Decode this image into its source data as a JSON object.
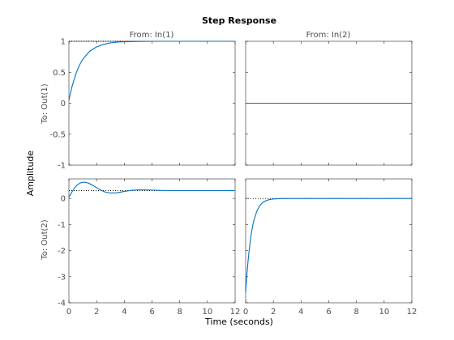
{
  "chart_data": {
    "type": "line",
    "title": "Step Response",
    "xlabel": "Time (seconds)",
    "ylabel": "Amplitude",
    "column_labels": [
      "From: In(1)",
      "From: In(2)"
    ],
    "row_labels": [
      "To: Out(1)",
      "To: Out(2)"
    ],
    "line_color": "#0072bd",
    "steady_state_line_color": "#000000",
    "xlim": [
      0,
      12
    ],
    "xticks": [
      "0",
      "2",
      "4",
      "6",
      "8",
      "10",
      "12"
    ],
    "rows": [
      {
        "ylim": [
          -1,
          1
        ],
        "yticks": [
          "1",
          "0.5",
          "0",
          "-0.5",
          "-1"
        ],
        "panels": [
          {
            "steady_state": 1.0,
            "x": [
              0,
              0.25,
              0.5,
              0.75,
              1,
              1.5,
              2,
              2.5,
              3,
              3.5,
              4,
              5,
              6,
              7,
              8,
              9,
              10,
              11,
              12
            ],
            "y": [
              0.05,
              0.29,
              0.47,
              0.61,
              0.71,
              0.84,
              0.91,
              0.95,
              0.975,
              0.987,
              0.993,
              0.998,
              1.0,
              1.0,
              1.0,
              1.0,
              1.0,
              1.0,
              1.0
            ]
          },
          {
            "steady_state": 0.0,
            "x": [
              0,
              12
            ],
            "y": [
              0.0,
              0.0
            ]
          }
        ]
      },
      {
        "ylim": [
          -4,
          0.75
        ],
        "yticks": [
          "0",
          "-1",
          "-2",
          "-3",
          "-4"
        ],
        "panels": [
          {
            "steady_state": 0.3,
            "x": [
              0,
              0.2,
              0.4,
              0.6,
              0.8,
              1,
              1.2,
              1.4,
              1.6,
              1.8,
              2,
              2.3,
              2.6,
              3,
              3.5,
              4,
              4.5,
              5,
              5.5,
              6,
              6.5,
              7,
              8,
              9,
              10,
              11,
              12
            ],
            "y": [
              0.05,
              0.23,
              0.4,
              0.52,
              0.59,
              0.62,
              0.62,
              0.59,
              0.54,
              0.48,
              0.41,
              0.32,
              0.25,
              0.21,
              0.22,
              0.27,
              0.31,
              0.33,
              0.33,
              0.32,
              0.31,
              0.3,
              0.3,
              0.3,
              0.3,
              0.3,
              0.3
            ]
          },
          {
            "steady_state": 0.0,
            "x": [
              0,
              0.1,
              0.2,
              0.3,
              0.4,
              0.5,
              0.6,
              0.8,
              1,
              1.2,
              1.4,
              1.6,
              1.8,
              2,
              2.5,
              3,
              4,
              6,
              8,
              10,
              12
            ],
            "y": [
              -3.6,
              -2.85,
              -2.25,
              -1.77,
              -1.38,
              -1.07,
              -0.83,
              -0.5,
              -0.29,
              -0.17,
              -0.1,
              -0.06,
              -0.035,
              -0.02,
              -0.006,
              -0.002,
              0,
              0,
              0,
              0,
              0
            ]
          }
        ]
      }
    ]
  }
}
